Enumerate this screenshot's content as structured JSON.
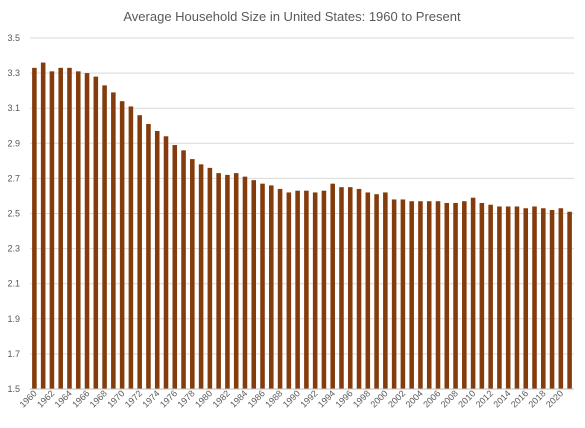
{
  "chart_data": {
    "type": "bar",
    "title": "Average Household Size in United States:  1960 to Present",
    "xlabel": "",
    "ylabel": "",
    "ylim": [
      1.5,
      3.5
    ],
    "yticks": [
      "1.5",
      "1.7",
      "1.9",
      "2.1",
      "2.3",
      "2.5",
      "2.7",
      "2.9",
      "3.1",
      "3.3",
      "3.5"
    ],
    "grid": true,
    "legend": "none",
    "bar_color": "#843c0c",
    "categories": [
      "1960",
      "1961",
      "1962",
      "1963",
      "1964",
      "1965",
      "1966",
      "1967",
      "1968",
      "1969",
      "1970",
      "1971",
      "1972",
      "1973",
      "1974",
      "1975",
      "1976",
      "1977",
      "1978",
      "1979",
      "1980",
      "1981",
      "1982",
      "1983",
      "1984",
      "1985",
      "1986",
      "1987",
      "1988",
      "1989",
      "1990",
      "1991",
      "1992",
      "1993",
      "1994",
      "1995",
      "1996",
      "1997",
      "1998",
      "1999",
      "2000",
      "2001",
      "2002",
      "2003",
      "2004",
      "2005",
      "2006",
      "2007",
      "2008",
      "2009",
      "2010",
      "2011",
      "2012",
      "2013",
      "2014",
      "2015",
      "2016",
      "2017",
      "2018",
      "2019",
      "2020",
      "2021"
    ],
    "x_tick_labels": [
      "1960",
      "1962",
      "1964",
      "1966",
      "1968",
      "1970",
      "1972",
      "1974",
      "1976",
      "1978",
      "1980",
      "1982",
      "1984",
      "1986",
      "1988",
      "1990",
      "1992",
      "1994",
      "1996",
      "1998",
      "2000",
      "2002",
      "2004",
      "2006",
      "2008",
      "2010",
      "2012",
      "2014",
      "2016",
      "2018",
      "2020"
    ],
    "values": [
      3.33,
      3.36,
      3.31,
      3.33,
      3.33,
      3.31,
      3.3,
      3.28,
      3.23,
      3.19,
      3.14,
      3.11,
      3.06,
      3.01,
      2.97,
      2.94,
      2.89,
      2.86,
      2.81,
      2.78,
      2.76,
      2.73,
      2.72,
      2.73,
      2.71,
      2.69,
      2.67,
      2.66,
      2.64,
      2.62,
      2.63,
      2.63,
      2.62,
      2.63,
      2.67,
      2.65,
      2.65,
      2.64,
      2.62,
      2.61,
      2.62,
      2.58,
      2.58,
      2.57,
      2.57,
      2.57,
      2.57,
      2.56,
      2.56,
      2.57,
      2.59,
      2.56,
      2.55,
      2.54,
      2.54,
      2.54,
      2.53,
      2.54,
      2.53,
      2.52,
      2.53,
      2.51
    ]
  }
}
